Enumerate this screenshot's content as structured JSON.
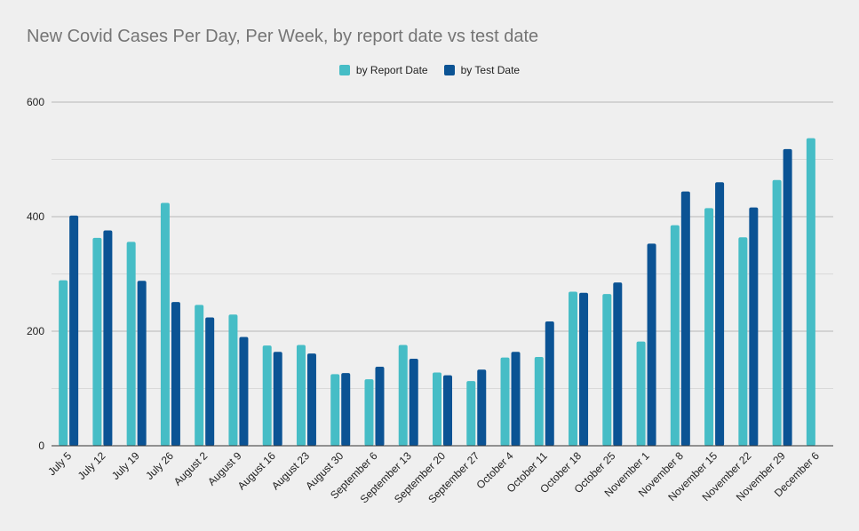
{
  "chart_data": {
    "type": "bar",
    "title": "New Covid Cases Per Day, Per Week, by report date vs test date",
    "xlabel": "",
    "ylabel": "",
    "ylim": [
      0,
      600
    ],
    "yticks": [
      0,
      200,
      400,
      600
    ],
    "grid": true,
    "legend_position": "top-center",
    "categories": [
      "July 5",
      "July 12",
      "July 19",
      "July 26",
      "August 2",
      "August 9",
      "August 16",
      "August 23",
      "August 30",
      "September 6",
      "September 13",
      "September 20",
      "September 27",
      "October 4",
      "October 11",
      "October 18",
      "October 25",
      "November 1",
      "November 8",
      "November 15",
      "November 22",
      "November 29",
      "December 6"
    ],
    "series": [
      {
        "name": "by Report Date",
        "color": "#46bdc6",
        "values": [
          289,
          363,
          356,
          424,
          246,
          229,
          175,
          176,
          125,
          116,
          176,
          128,
          113,
          154,
          155,
          269,
          265,
          182,
          385,
          415,
          364,
          464,
          537
        ]
      },
      {
        "name": "by Test Date",
        "color": "#0b5394",
        "values": [
          402,
          376,
          288,
          251,
          224,
          190,
          164,
          161,
          127,
          138,
          152,
          123,
          133,
          164,
          217,
          267,
          285,
          353,
          444,
          460,
          416,
          518,
          null
        ]
      }
    ]
  }
}
